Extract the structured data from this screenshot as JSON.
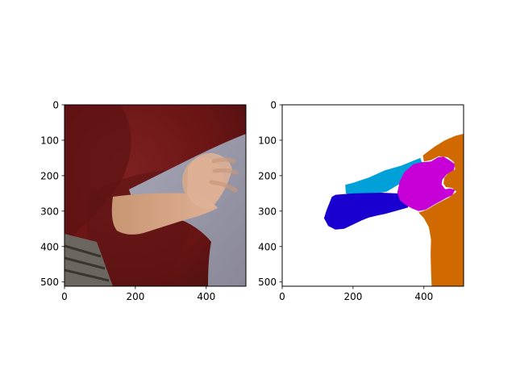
{
  "chart_data": [
    {
      "type": "image",
      "title": "",
      "xlabel": "",
      "ylabel": "",
      "xlim": [
        0,
        512
      ],
      "ylim": [
        512,
        0
      ],
      "xticks": [
        0,
        200,
        400
      ],
      "yticks": [
        0,
        100,
        200,
        300,
        400,
        500
      ],
      "content": "photo of a person's arm and hand raised against a dark red background, a light grey sleeve on the right"
    },
    {
      "type": "image",
      "title": "",
      "xlabel": "",
      "ylabel": "",
      "xlim": [
        0,
        512
      ],
      "ylim": [
        512,
        0
      ],
      "xticks": [
        0,
        200,
        400
      ],
      "yticks": [
        0,
        100,
        200,
        300,
        400,
        500
      ],
      "segments": [
        {
          "color": "#00a0d8",
          "points": [
            [
              178,
              226
            ],
            [
              200,
              220
            ],
            [
              245,
              205
            ],
            [
              290,
              185
            ],
            [
              335,
              172
            ],
            [
              365,
              160
            ],
            [
              390,
              150
            ],
            [
              395,
              165
            ],
            [
              380,
              195
            ],
            [
              345,
              215
            ],
            [
              320,
              230
            ],
            [
              295,
              245
            ],
            [
              265,
              250
            ],
            [
              230,
              252
            ],
            [
              190,
              253
            ],
            [
              180,
              250
            ]
          ]
        },
        {
          "color": "#1a00d0",
          "points": [
            [
              140,
              260
            ],
            [
              150,
              254
            ],
            [
              200,
              250
            ],
            [
              280,
              248
            ],
            [
              325,
              250
            ],
            [
              360,
              268
            ],
            [
              355,
              290
            ],
            [
              320,
              300
            ],
            [
              290,
              308
            ],
            [
              270,
              312
            ],
            [
              245,
              318
            ],
            [
              225,
              326
            ],
            [
              200,
              338
            ],
            [
              175,
              350
            ],
            [
              150,
              352
            ],
            [
              130,
              342
            ],
            [
              118,
              320
            ],
            [
              125,
              298
            ],
            [
              133,
              278
            ]
          ]
        },
        {
          "color": "#c800d8",
          "points": [
            [
              325,
              248
            ],
            [
              332,
              215
            ],
            [
              345,
              190
            ],
            [
              370,
              168
            ],
            [
              393,
              162
            ],
            [
              420,
              160
            ],
            [
              440,
              148
            ],
            [
              455,
              146
            ],
            [
              472,
              156
            ],
            [
              488,
              168
            ],
            [
              484,
              185
            ],
            [
              465,
              196
            ],
            [
              452,
              211
            ],
            [
              450,
              225
            ],
            [
              460,
              238
            ],
            [
              475,
              236
            ],
            [
              488,
              240
            ],
            [
              480,
              255
            ],
            [
              465,
              262
            ],
            [
              450,
              270
            ],
            [
              432,
              280
            ],
            [
              405,
              296
            ],
            [
              385,
              300
            ],
            [
              365,
              292
            ],
            [
              348,
              282
            ],
            [
              333,
              270
            ]
          ]
        },
        {
          "color": "#d06a00",
          "points": [
            [
              397,
              143
            ],
            [
              430,
              118
            ],
            [
              460,
              100
            ],
            [
              490,
              87
            ],
            [
              512,
              82
            ],
            [
              512,
              512
            ],
            [
              422,
              512
            ],
            [
              420,
              470
            ],
            [
              419,
              420
            ],
            [
              420,
              380
            ],
            [
              414,
              345
            ],
            [
              400,
              320
            ],
            [
              385,
              304
            ],
            [
              408,
              296
            ],
            [
              435,
              280
            ],
            [
              470,
              262
            ],
            [
              492,
              245
            ],
            [
              480,
              235
            ],
            [
              462,
              232
            ],
            [
              455,
              222
            ],
            [
              458,
              205
            ],
            [
              470,
              192
            ],
            [
              488,
              182
            ],
            [
              485,
              162
            ],
            [
              467,
              148
            ],
            [
              442,
              145
            ],
            [
              420,
              156
            ],
            [
              400,
              160
            ]
          ]
        }
      ]
    }
  ]
}
